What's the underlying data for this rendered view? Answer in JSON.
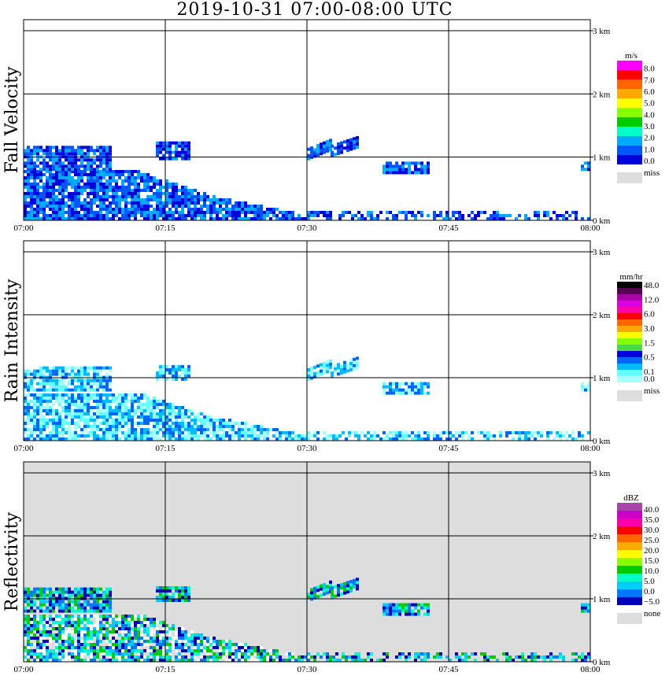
{
  "title": "2019-10-31   07:00-08:00 UTC",
  "chart_data": [
    {
      "type": "heatmap",
      "ylabel": "Fall Velocity",
      "x_ticks": [
        "07:00",
        "07:15",
        "07:30",
        "07:45",
        "08:00"
      ],
      "y_ticks": [
        "0 km",
        "1 km",
        "2 km",
        "3 km"
      ],
      "ylim_km": [
        0,
        3.2
      ],
      "grid": true,
      "background": "#ffffff",
      "colorbar": {
        "unit": "m/s",
        "labels": [
          "8.0",
          "7.0",
          "6.0",
          "5.0",
          "4.0",
          "3.0",
          "2.0",
          "1.0",
          "0.0"
        ],
        "colors": [
          "#ff00ff",
          "#ff0000",
          "#ff6600",
          "#ffaa00",
          "#ffff00",
          "#88ff00",
          "#00cc00",
          "#00ffcc",
          "#00aaff",
          "#0055ff",
          "#0000dd"
        ],
        "miss_label": "miss",
        "miss_color": "#dddddd"
      }
    },
    {
      "type": "heatmap",
      "ylabel": "Rain Intensity",
      "x_ticks": [
        "07:00",
        "07:15",
        "07:30",
        "07:45",
        "08:00"
      ],
      "y_ticks": [
        "0 km",
        "1 km",
        "2 km",
        "3 km"
      ],
      "ylim_km": [
        0,
        3.2
      ],
      "grid": true,
      "background": "#ffffff",
      "colorbar": {
        "unit": "mm/hr",
        "labels": [
          "48.0",
          "",
          "12.0",
          "",
          "6.0",
          "",
          "3.0",
          "",
          "1.5",
          "",
          "0.5",
          "",
          "0.1",
          "0.0"
        ],
        "colors": [
          "#000000",
          "#550055",
          "#aa00aa",
          "#dd00dd",
          "#ff00aa",
          "#ff0000",
          "#ff6600",
          "#ffaa00",
          "#ffff00",
          "#88ff00",
          "#44dd44",
          "#0000dd",
          "#0066ff",
          "#00bbff",
          "#66ffff",
          "#aaffff"
        ],
        "miss_label": "miss",
        "miss_color": "#dddddd"
      }
    },
    {
      "type": "heatmap",
      "ylabel": "Reflectivity",
      "x_ticks": [
        "07:00",
        "07:15",
        "07:30",
        "07:45",
        "08:00"
      ],
      "y_ticks": [
        "0 km",
        "1 km",
        "2 km",
        "3 km"
      ],
      "ylim_km": [
        0,
        3.2
      ],
      "grid": true,
      "background": "#dddddd",
      "colorbar": {
        "unit": "dBZ",
        "labels": [
          "40.0",
          "35.0",
          "30.0",
          "25.0",
          "20.0",
          "15.0",
          "10.0",
          "5.0",
          "0.0",
          "−5.0"
        ],
        "colors": [
          "#aa44aa",
          "#cc00cc",
          "#ff00aa",
          "#ff0000",
          "#ff6600",
          "#ffaa00",
          "#ffff00",
          "#88ff00",
          "#00cc00",
          "#00ffcc",
          "#00ccff",
          "#0077ff",
          "#0000bb"
        ],
        "miss_label": "none",
        "miss_color": "#dddddd"
      }
    }
  ]
}
